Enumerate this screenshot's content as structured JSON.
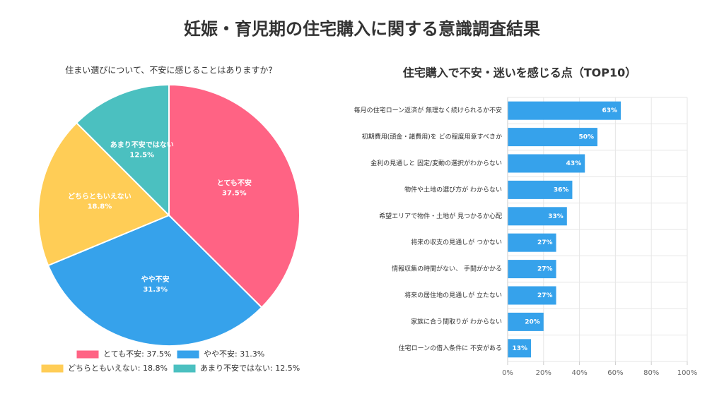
{
  "title": "妊娠・育児期の住宅購入に関する意識調査結果",
  "chart_data": [
    {
      "type": "pie",
      "title": "住まい選びについて、不安に感じることはありますか?",
      "categories": [
        "とても不安",
        "やや不安",
        "どちらともいえない",
        "あまり不安ではない"
      ],
      "values": [
        37.5,
        31.3,
        18.8,
        12.5
      ],
      "value_labels": [
        "37.5%",
        "31.3%",
        "18.8%",
        "12.5%"
      ],
      "legend_labels": [
        "とても不安: 37.5%",
        "やや不安: 31.3%",
        "どちらともいえない: 18.8%",
        "あまり不安ではない: 12.5%"
      ],
      "colors": [
        "#ff6384",
        "#36a2eb",
        "#ffcd56",
        "#4bc0c0"
      ]
    },
    {
      "type": "bar",
      "orientation": "horizontal",
      "title": "住宅購入で不安・迷いを感じる点（TOP10）",
      "categories": [
        "毎月の住宅ローン返済が 無理なく続けられるか不安",
        "初期費用(頭金・諸費用)を どの程度用意すべきか",
        "金利の見通しと 固定/変動の選択がわからない",
        "物件や土地の選び方が わからない",
        "希望エリアで物件・土地が 見つかるか心配",
        "将来の収支の見通しが つかない",
        "情報収集の時間がない、 手間がかかる",
        "将来の居住地の見通しが 立たない",
        "家族に合う間取りが わからない",
        "住宅ローンの借入条件に 不安がある"
      ],
      "values": [
        63,
        50,
        43,
        36,
        33,
        27,
        27,
        27,
        20,
        13
      ],
      "value_labels": [
        "63%",
        "50%",
        "43%",
        "36%",
        "33%",
        "27%",
        "27%",
        "27%",
        "20%",
        "13%"
      ],
      "color": "#36a2eb",
      "xlim": [
        0,
        100
      ],
      "xticks": [
        {
          "value": 0,
          "label": "0%"
        },
        {
          "value": 20,
          "label": "20%"
        },
        {
          "value": 40,
          "label": "40%"
        },
        {
          "value": 60,
          "label": "60%"
        },
        {
          "value": 80,
          "label": "80%"
        },
        {
          "value": 100,
          "label": "100%"
        }
      ],
      "grid": true
    }
  ]
}
